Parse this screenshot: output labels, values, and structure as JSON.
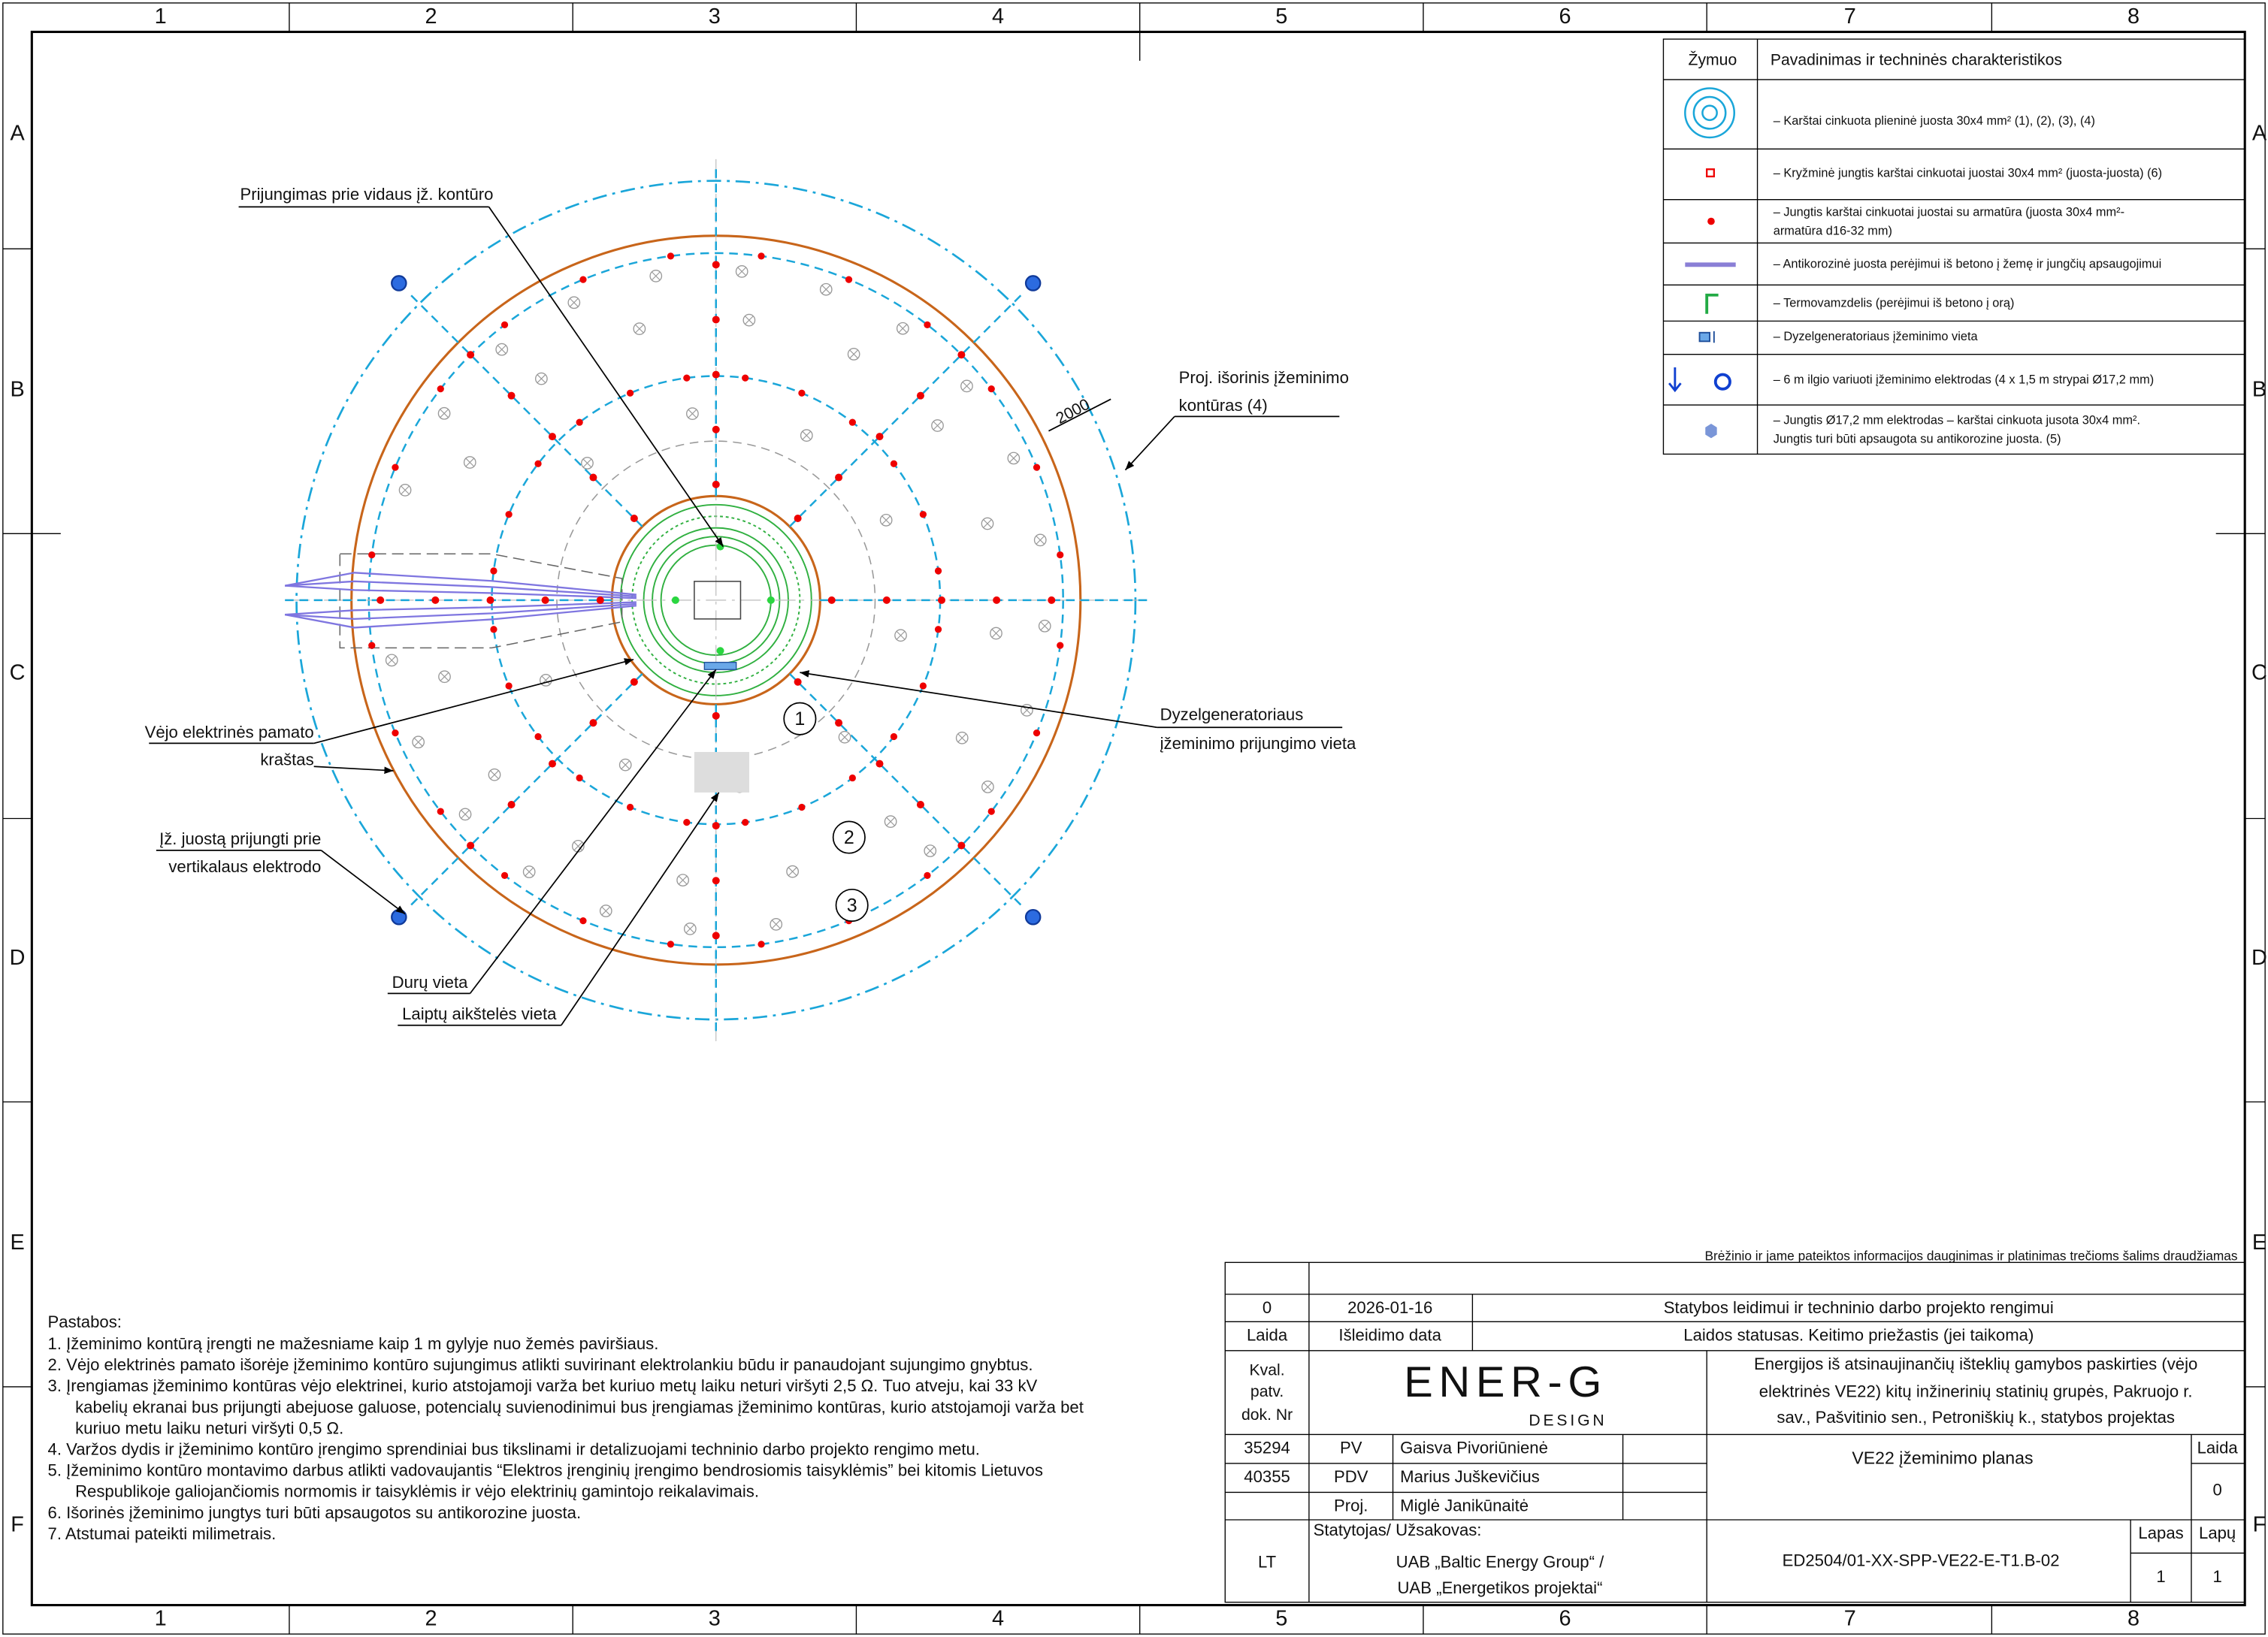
{
  "frame": {
    "columns": [
      "1",
      "2",
      "3",
      "4",
      "5",
      "6",
      "7",
      "8"
    ],
    "rows": [
      "A",
      "B",
      "C",
      "D",
      "E",
      "F"
    ]
  },
  "legend": {
    "header": [
      "Žymuo",
      "Pavadinimas ir techninės charakteristikos"
    ],
    "items": [
      [
        "– Karštai cinkuota plieninė juosta 30x4 mm² (1), (2), (3), (4)"
      ],
      [
        "– Kryžminė jungtis karštai cinkuotai juostai 30x4 mm² (juosta-juosta) (6)"
      ],
      [
        "– Jungtis karštai cinkuotai juostai su armatūra (juosta 30x4 mm²-",
        "armatūra d16-32 mm)"
      ],
      [
        "– Antikorozinė juosta perėjimui iš betono į žemę ir jungčių apsaugojimui"
      ],
      [
        "– Termovamzdelis (perėjimui iš betono į orą)"
      ],
      [
        "– Dyzelgeneratoriaus įžeminimo vieta"
      ],
      [
        "– 6 m ilgio variuoti įžeminimo elektrodas (4 x 1,5 m strypai Ø17,2 mm)"
      ],
      [
        "– Jungtis Ø17,2 mm elektrodas – karštai cinkuota jusota 30x4 mm².",
        "Jungtis turi būti apsaugota su antikorozine juosta. (5)"
      ]
    ]
  },
  "callouts": {
    "inner_connection": [
      "Prijungimas prie vidaus įž. kontūro"
    ],
    "outer_contour": [
      "Proj. išorinis įžeminimo",
      "kontūras (4)"
    ],
    "foundation_edge": [
      "Vėjo elektrinės pamato",
      "kraštas"
    ],
    "generator": [
      "Dyzelgeneratoriaus",
      "įžeminimo prijungimo vieta"
    ],
    "electrode": [
      "Įž. juostą prijungti prie",
      "vertikalaus elektrodo"
    ],
    "door": [
      "Durų vieta"
    ],
    "stairs": [
      "Laiptų aikštelės vieta"
    ],
    "markers": [
      "1",
      "2",
      "3"
    ],
    "dimension": "2000"
  },
  "notes": {
    "title": "Pastabos:",
    "items": [
      [
        "1.  Įžeminimo kontūrą įrengti ne mažesniame kaip 1 m gylyje nuo žemės paviršiaus."
      ],
      [
        "2.  Vėjo elektrinės pamato išorėje įžeminimo kontūro sujungimus atlikti suvirinant elektrolankiu būdu ir panaudojant sujungimo gnybtus."
      ],
      [
        "3.  Įrengiamas įžeminimo kontūras vėjo elektrinei, kurio atstojamoji varža bet kuriuo metų laiku neturi viršyti 2,5 Ω. Tuo atveju, kai 33 kV",
        "kabelių ekranai bus prijungti abejuose galuose, potencialų suvienodinimui bus įrengiamas įžeminimo kontūras, kurio atstojamoji varža bet",
        "kuriuo metu laiku neturi viršyti 0,5 Ω."
      ],
      [
        "4.  Varžos dydis ir įžeminimo kontūro įrengimo sprendiniai bus tikslinami ir detalizuojami techninio darbo projekto rengimo metu."
      ],
      [
        "5.  Įžeminimo kontūro montavimo darbus atlikti vadovaujantis “Elektros įrenginių įrengimo bendrosiomis taisyklėmis” bei kitomis Lietuvos",
        "Respublikoje galiojančiomis normomis ir taisyklėmis ir vėjo elektrinių gamintojo reikalavimais."
      ],
      [
        "6.  Išorinės įžeminimo jungtys turi būti apsaugotos su antikorozine juosta."
      ],
      [
        "7.  Atstumai pateikti milimetrais."
      ]
    ]
  },
  "title_block": {
    "copyright": "Brėžinio ir jame pateiktos informacijos dauginimas ir platinimas trečioms šalims draudžiamas",
    "revision": [
      "0",
      "2026-01-16",
      "Statybos leidimui ir techninio darbo projekto rengimui"
    ],
    "revision_header": [
      "Laida",
      "Išleidimo data",
      "Laidos statusas. Keitimo priežastis (jei taikoma)"
    ],
    "cert_label": [
      "Kval.",
      "patv.",
      "dok. Nr"
    ],
    "logo": [
      "ENER-G",
      "DESIGN"
    ],
    "project": [
      "Energijos iš atsinaujinančių išteklių gamybos paskirties (vėjo",
      "elektrinės VE22) kitų inžinerinių statinių grupės, Pakruojo r.",
      "sav., Pašvitinio sen., Petroniškių k., statybos projektas"
    ],
    "people": [
      {
        "cert": "35294",
        "role": "PV",
        "name": "Gaisva Pivoriūnienė"
      },
      {
        "cert": "40355",
        "role": "PDV",
        "name": "Marius Juškevičius"
      },
      {
        "role": "Proj.",
        "name": "Miglė Janikūnaitė"
      }
    ],
    "drawing_title": "VE22 įžeminimo planas",
    "revision_label": "Laida",
    "revision_number": "0",
    "country": "LT",
    "client_label": "Statytojas/ Užsakovas:",
    "client": [
      "UAB „Baltic Energy Group“ /",
      "UAB „Energetikos projektai“"
    ],
    "code": "ED2504/01-XX-SPP-VE22-E-T1.B-02",
    "sheet_label": "Lapas",
    "sheets_label": "Lapų",
    "sheet": "1",
    "sheets": "1"
  }
}
